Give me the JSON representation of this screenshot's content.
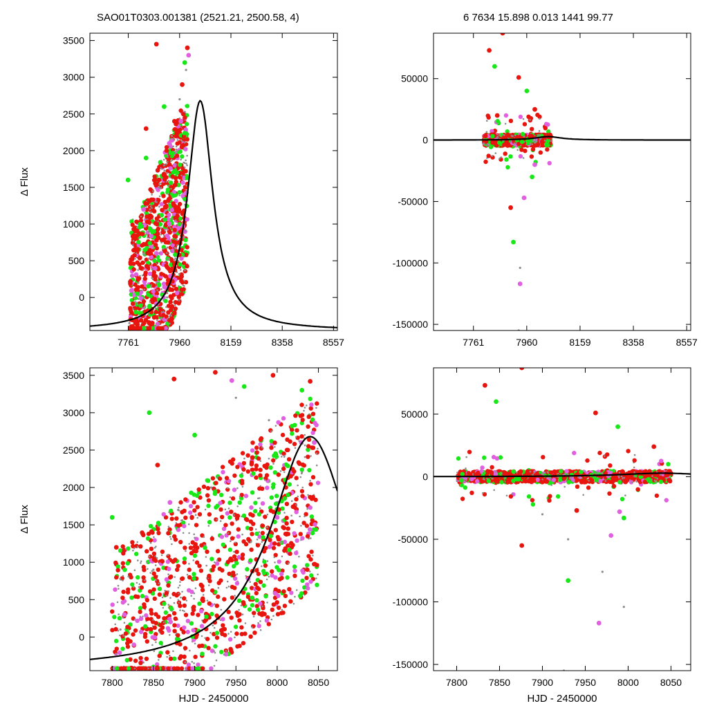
{
  "header": {
    "left": "SAO01T0303.001381 (2521.21, 2500.58,    4)",
    "right": "6   7634   15.898   0.013   1441   99.77"
  },
  "colors": {
    "series_red": "#e8140e",
    "series_green": "#18e818",
    "series_magenta": "#e060e0",
    "series_gray": "#8c8c8c",
    "model_curve": "#000000",
    "frame": "#000000"
  },
  "chart_data": [
    {
      "type": "scatter",
      "panel": "top-left",
      "xlabel": "",
      "ylabel": "Δ Flux",
      "xlim": [
        7612,
        8572
      ],
      "ylim": [
        -450,
        3600
      ],
      "xticks": [
        7761,
        7960,
        8159,
        8358,
        8557
      ],
      "yticks": [
        0,
        500,
        1000,
        1500,
        2000,
        2500,
        3000,
        3500
      ],
      "grid": false,
      "series": [
        {
          "color": "#8c8c8c",
          "points": [
            [
              7765,
              -350
            ],
            [
              7800,
              200
            ],
            [
              7840,
              900
            ],
            [
              7870,
              1300
            ],
            [
              7900,
              1800
            ],
            [
              7930,
              2200
            ],
            [
              7960,
              2700
            ],
            [
              7985,
              3100
            ],
            [
              7820,
              600
            ],
            [
              7880,
              1500
            ]
          ]
        },
        {
          "color": "#e8140e",
          "points": [
            [
              7770,
              -300
            ],
            [
              7810,
              400
            ],
            [
              7850,
              1100
            ],
            [
              7880,
              1600
            ],
            [
              7910,
              2000
            ],
            [
              7940,
              2400
            ],
            [
              7970,
              2900
            ],
            [
              7990,
              3400
            ],
            [
              7830,
              2300
            ],
            [
              7870,
              3450
            ]
          ]
        },
        {
          "color": "#18e818",
          "points": [
            [
              7760,
              1600
            ],
            [
              7790,
              -200
            ],
            [
              7830,
              1900
            ],
            [
              7860,
              900
            ],
            [
              7900,
              2600
            ],
            [
              7950,
              1700
            ],
            [
              7980,
              3200
            ]
          ]
        },
        {
          "color": "#e060e0",
          "points": [
            [
              7775,
              100
            ],
            [
              7820,
              1200
            ],
            [
              7870,
              600
            ],
            [
              7920,
              2100
            ],
            [
              7965,
              2400
            ],
            [
              7995,
              3300
            ]
          ]
        }
      ],
      "model": {
        "type": "line",
        "peak_x": 8040,
        "peak_y": 2680,
        "baseline_y": -450
      }
    },
    {
      "type": "scatter",
      "panel": "top-right",
      "xlabel": "",
      "ylabel": "",
      "xlim": [
        7612,
        8572
      ],
      "ylim": [
        -155000,
        87000
      ],
      "xticks": [
        7761,
        7960,
        8159,
        8358,
        8557
      ],
      "yticks": [
        50000,
        0,
        -50000,
        -100000,
        -150000
      ],
      "grid": false,
      "series": [
        {
          "color": "#8c8c8c",
          "points": [
            [
              7800,
              -3000
            ],
            [
              7850,
              2000
            ],
            [
              7900,
              -1000
            ],
            [
              7950,
              3000
            ],
            [
              7990,
              -2000
            ],
            [
              7935,
              -104000
            ],
            [
              7930,
              -155000
            ]
          ]
        },
        {
          "color": "#e8140e",
          "points": [
            [
              7820,
              73000
            ],
            [
              7870,
              87000
            ],
            [
              7930,
              51000
            ],
            [
              7900,
              -55000
            ],
            [
              7850,
              20000
            ],
            [
              7990,
              25000
            ]
          ]
        },
        {
          "color": "#18e818",
          "points": [
            [
              7840,
              60000
            ],
            [
              7910,
              -83000
            ],
            [
              7960,
              40000
            ],
            [
              7980,
              -30000
            ]
          ]
        },
        {
          "color": "#e060e0",
          "points": [
            [
              7935,
              -117000
            ],
            [
              7950,
              -47000
            ],
            [
              7990,
              -20000
            ]
          ]
        }
      ],
      "model": {
        "type": "line",
        "peak_x": 8040,
        "peak_y": 2680,
        "baseline_y": 0
      }
    },
    {
      "type": "scatter",
      "panel": "bottom-left",
      "xlabel": "HJD - 2450000",
      "ylabel": "Δ Flux",
      "xlim": [
        7773,
        8073
      ],
      "ylim": [
        -450,
        3600
      ],
      "xticks": [
        7800,
        7850,
        7900,
        7950,
        8000,
        8050
      ],
      "yticks": [
        0,
        500,
        1000,
        1500,
        2000,
        2500,
        3000,
        3500
      ],
      "grid": false,
      "series": [
        {
          "color": "#8c8c8c",
          "points": [
            [
              7810,
              100
            ],
            [
              7850,
              900
            ],
            [
              7880,
              1700
            ],
            [
              7920,
              2000
            ],
            [
              7950,
              3200
            ],
            [
              7990,
              2900
            ],
            [
              8030,
              2200
            ]
          ]
        },
        {
          "color": "#e8140e",
          "points": [
            [
              7805,
              1200
            ],
            [
              7855,
              2300
            ],
            [
              7875,
              3450
            ],
            [
              7925,
              3540
            ],
            [
              7995,
              3500
            ],
            [
              8040,
              3420
            ],
            [
              7970,
              2400
            ]
          ]
        },
        {
          "color": "#18e818",
          "points": [
            [
              7800,
              1600
            ],
            [
              7845,
              3000
            ],
            [
              7900,
              2700
            ],
            [
              7960,
              3350
            ],
            [
              8010,
              2100
            ],
            [
              8030,
              3300
            ]
          ]
        },
        {
          "color": "#e060e0",
          "points": [
            [
              7815,
              300
            ],
            [
              7870,
              1800
            ],
            [
              7945,
              3430
            ],
            [
              8000,
              1600
            ],
            [
              8045,
              2600
            ]
          ]
        }
      ],
      "model": {
        "type": "line",
        "peak_x": 8040,
        "peak_y": 2680,
        "baseline_y": -450
      }
    },
    {
      "type": "scatter",
      "panel": "bottom-right",
      "xlabel": "HJD - 2450000",
      "ylabel": "",
      "xlim": [
        7773,
        8073
      ],
      "ylim": [
        -155000,
        87000
      ],
      "xticks": [
        7800,
        7850,
        7900,
        7950,
        8000,
        8050
      ],
      "yticks": [
        50000,
        0,
        -50000,
        -100000,
        -150000
      ],
      "grid": false,
      "series": [
        {
          "color": "#8c8c8c",
          "points": [
            [
              7900,
              -30000
            ],
            [
              7930,
              -50000
            ],
            [
              7970,
              -76000
            ],
            [
              7995,
              -104000
            ],
            [
              7925,
              -155000
            ]
          ]
        },
        {
          "color": "#e8140e",
          "points": [
            [
              7833,
              73000
            ],
            [
              7876,
              87000
            ],
            [
              7962,
              51000
            ],
            [
              7876,
              -55000
            ],
            [
              7940,
              -27000
            ],
            [
              8030,
              24000
            ]
          ]
        },
        {
          "color": "#18e818",
          "points": [
            [
              7846,
              60000
            ],
            [
              7988,
              40000
            ],
            [
              7930,
              -83000
            ],
            [
              7995,
              -33000
            ]
          ]
        },
        {
          "color": "#e060e0",
          "points": [
            [
              7966,
              -117000
            ],
            [
              7980,
              -47000
            ],
            [
              7990,
              -28000
            ]
          ]
        }
      ],
      "model": {
        "type": "line",
        "peak_x": 8040,
        "peak_y": 2680,
        "baseline_y": 0
      }
    }
  ]
}
